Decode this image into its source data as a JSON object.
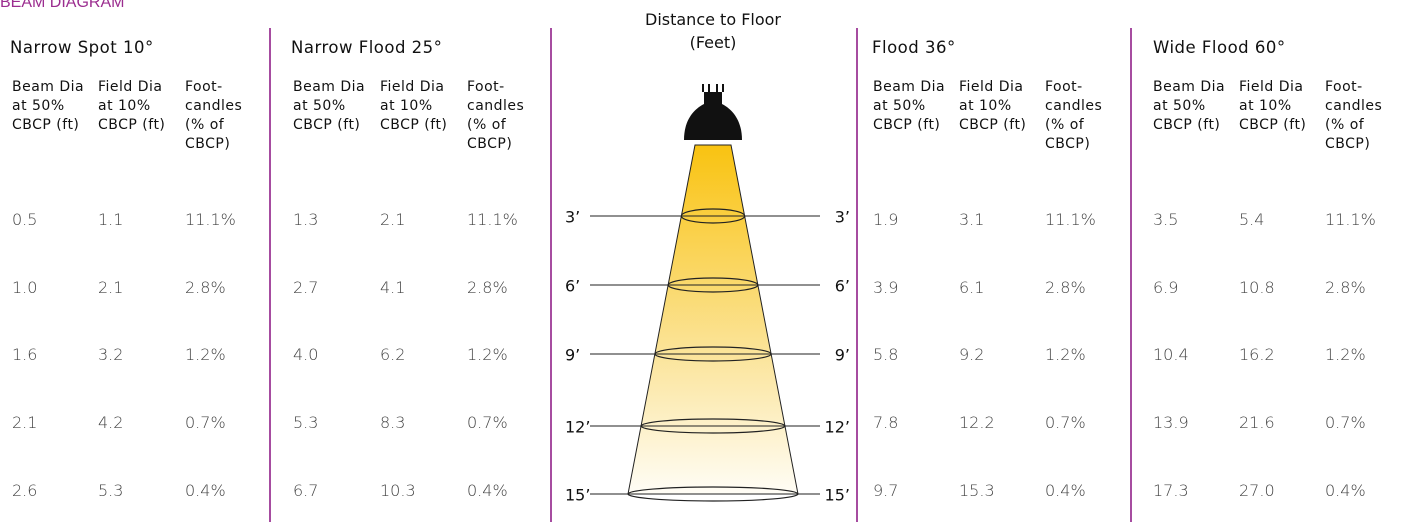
{
  "title": "BEAM DIAGRAM",
  "center": {
    "header": "Distance to Floor (Feet)",
    "distances": [
      "3’",
      "6’",
      "9’",
      "12’",
      "15’"
    ]
  },
  "groups": [
    {
      "title": "Narrow Spot 10°",
      "headers": [
        "Beam Dia at 50% CBCP (ft)",
        "Field Dia at 10% CBCP (ft)",
        "Foot-candles (% of CBCP)"
      ],
      "rows": [
        [
          "0.5",
          "1.1",
          "11.1%"
        ],
        [
          "1.0",
          "2.1",
          "2.8%"
        ],
        [
          "1.6",
          "3.2",
          "1.2%"
        ],
        [
          "2.1",
          "4.2",
          "0.7%"
        ],
        [
          "2.6",
          "5.3",
          "0.4%"
        ]
      ]
    },
    {
      "title": "Narrow Flood 25°",
      "headers": [
        "Beam Dia at 50% CBCP (ft)",
        "Field Dia at 10% CBCP (ft)",
        "Foot-candles (% of CBCP)"
      ],
      "rows": [
        [
          "1.3",
          "2.1",
          "11.1%"
        ],
        [
          "2.7",
          "4.1",
          "2.8%"
        ],
        [
          "4.0",
          "6.2",
          "1.2%"
        ],
        [
          "5.3",
          "8.3",
          "0.7%"
        ],
        [
          "6.7",
          "10.3",
          "0.4%"
        ]
      ]
    },
    {
      "title": "Flood 36°",
      "headers": [
        "Beam Dia at 50% CBCP (ft)",
        "Field Dia at 10% CBCP (ft)",
        "Foot-candles (% of CBCP)"
      ],
      "rows": [
        [
          "1.9",
          "3.1",
          "11.1%"
        ],
        [
          "3.9",
          "6.1",
          "2.8%"
        ],
        [
          "5.8",
          "9.2",
          "1.2%"
        ],
        [
          "7.8",
          "12.2",
          "0.7%"
        ],
        [
          "9.7",
          "15.3",
          "0.4%"
        ]
      ]
    },
    {
      "title": "Wide Flood 60°",
      "headers": [
        "Beam Dia at 50% CBCP (ft)",
        "Field Dia at 10% CBCP (ft)",
        "Foot-candles (% of CBCP)"
      ],
      "rows": [
        [
          "3.5",
          "5.4",
          "11.1%"
        ],
        [
          "6.9",
          "10.8",
          "2.8%"
        ],
        [
          "10.4",
          "16.2",
          "1.2%"
        ],
        [
          "13.9",
          "21.6",
          "0.7%"
        ],
        [
          "17.3",
          "27.0",
          "0.4%"
        ]
      ]
    }
  ]
}
